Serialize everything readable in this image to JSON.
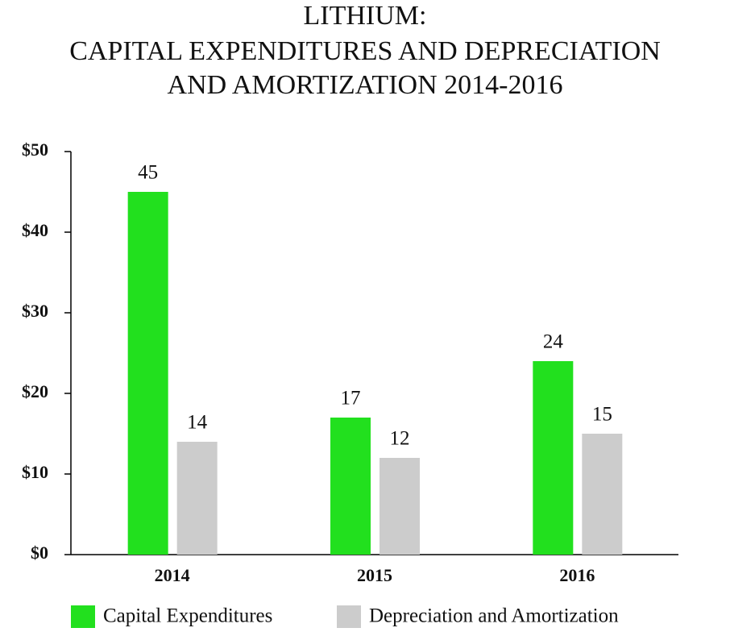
{
  "chart_data": {
    "type": "bar",
    "title": [
      "LITHIUM:",
      "CAPITAL EXPENDITURES AND DEPRECIATION",
      "AND AMORTIZATION 2014-2016"
    ],
    "categories": [
      "2014",
      "2015",
      "2016"
    ],
    "series": [
      {
        "name": "Capital Expenditures",
        "color": "#22e01e",
        "values": [
          45,
          17,
          24
        ]
      },
      {
        "name": "Depreciation and Amortization",
        "color": "#cccccc",
        "values": [
          14,
          12,
          15
        ]
      }
    ],
    "ylim": [
      0,
      50
    ],
    "yticks": [
      {
        "value": 0,
        "label": "$0"
      },
      {
        "value": 10,
        "label": "$10"
      },
      {
        "value": 20,
        "label": "$20"
      },
      {
        "value": 30,
        "label": "$30"
      },
      {
        "value": 40,
        "label": "$40"
      },
      {
        "value": 50,
        "label": "$50"
      }
    ],
    "grid": false
  }
}
